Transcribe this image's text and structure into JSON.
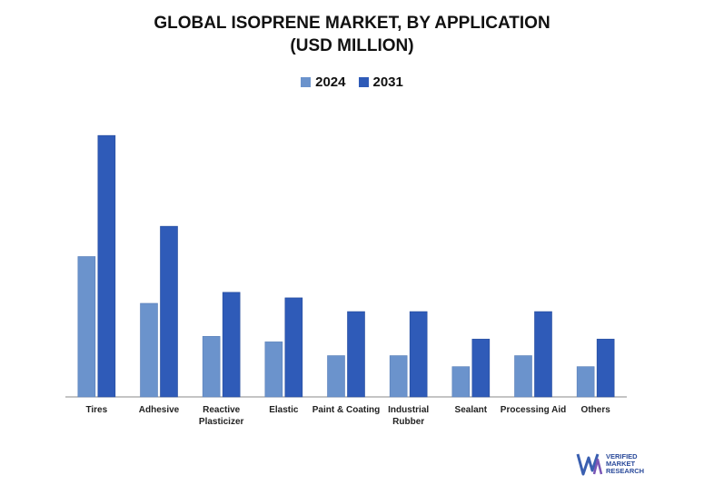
{
  "chart_data": {
    "type": "bar",
    "title_line1": "GLOBAL ISOPRENE MARKET, BY APPLICATION",
    "title_line2": "(USD MILLION)",
    "categories": [
      "Tires",
      "Adhesive",
      "Reactive\nPlasticizer",
      "Elastic",
      "Paint & Coating",
      "Industrial\nRubber",
      "Sealant",
      "Processing Aid",
      "Others"
    ],
    "series": [
      {
        "name": "2024",
        "color": "#6b93cc",
        "values": [
          51,
          34,
          22,
          20,
          15,
          15,
          11,
          15,
          11
        ]
      },
      {
        "name": "2031",
        "color": "#2f5bb8",
        "values": [
          95,
          62,
          38,
          36,
          31,
          31,
          21,
          31,
          21
        ]
      }
    ],
    "ylim": [
      0,
      100
    ],
    "grid": false,
    "legend_position": "top-center",
    "xlabel": "",
    "ylabel": ""
  },
  "logo": {
    "mark": "VMR",
    "line1": "VERIFIED",
    "line2": "MARKET",
    "line3": "RESEARCH"
  }
}
